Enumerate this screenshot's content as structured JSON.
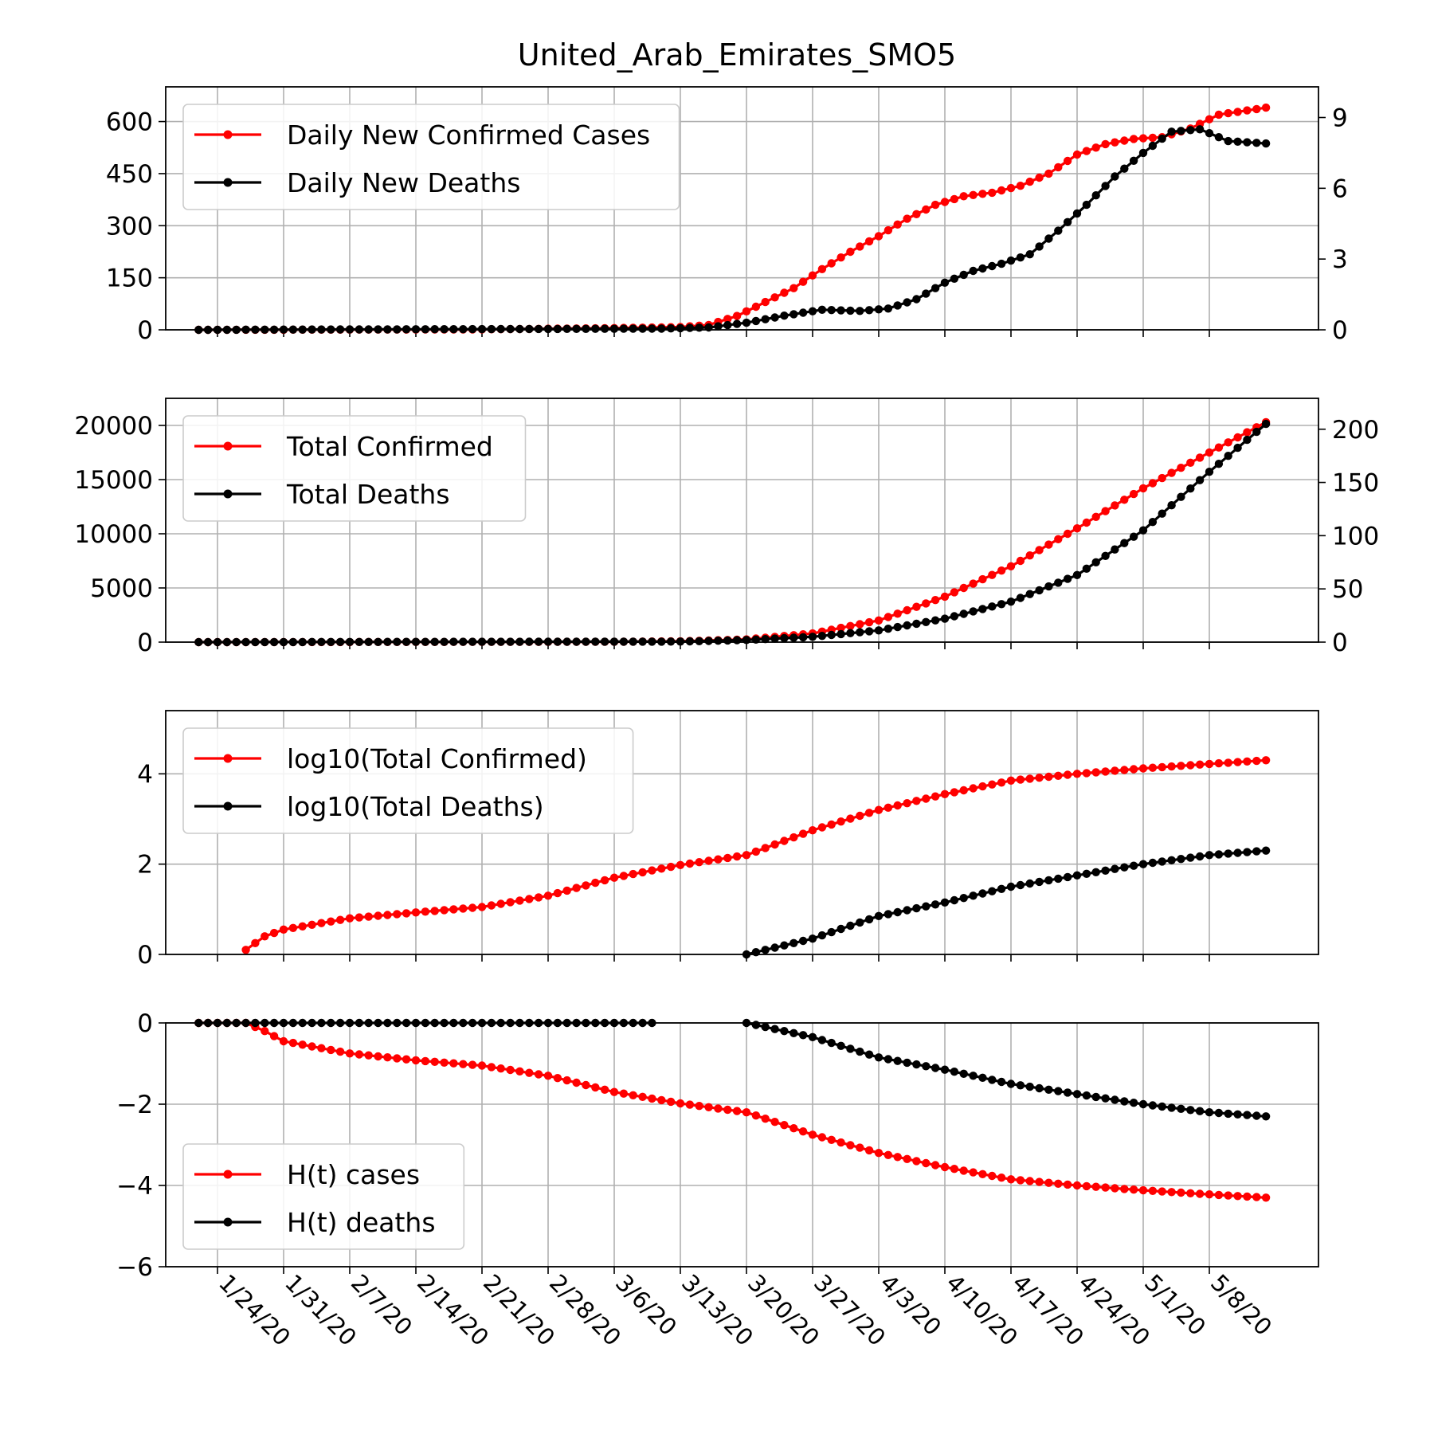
{
  "title": "United_Arab_Emirates_SMO5",
  "colors": {
    "cases": "#ff0000",
    "deaths": "#000000",
    "grid": "#b0b0b0"
  },
  "x_dates": [
    "1/22/20",
    "1/23/20",
    "1/24/20",
    "1/25/20",
    "1/26/20",
    "1/27/20",
    "1/28/20",
    "1/29/20",
    "1/30/20",
    "1/31/20",
    "2/1/20",
    "2/2/20",
    "2/3/20",
    "2/4/20",
    "2/5/20",
    "2/6/20",
    "2/7/20",
    "2/8/20",
    "2/9/20",
    "2/10/20",
    "2/11/20",
    "2/12/20",
    "2/13/20",
    "2/14/20",
    "2/15/20",
    "2/16/20",
    "2/17/20",
    "2/18/20",
    "2/19/20",
    "2/20/20",
    "2/21/20",
    "2/22/20",
    "2/23/20",
    "2/24/20",
    "2/25/20",
    "2/26/20",
    "2/27/20",
    "2/28/20",
    "2/29/20",
    "3/1/20",
    "3/2/20",
    "3/3/20",
    "3/4/20",
    "3/5/20",
    "3/6/20",
    "3/7/20",
    "3/8/20",
    "3/9/20",
    "3/10/20",
    "3/11/20",
    "3/12/20",
    "3/13/20",
    "3/14/20",
    "3/15/20",
    "3/16/20",
    "3/17/20",
    "3/18/20",
    "3/19/20",
    "3/20/20",
    "3/21/20",
    "3/22/20",
    "3/23/20",
    "3/24/20",
    "3/25/20",
    "3/26/20",
    "3/27/20",
    "3/28/20",
    "3/29/20",
    "3/30/20",
    "3/31/20",
    "4/1/20",
    "4/2/20",
    "4/3/20",
    "4/4/20",
    "4/5/20",
    "4/6/20",
    "4/7/20",
    "4/8/20",
    "4/9/20",
    "4/10/20",
    "4/11/20",
    "4/12/20",
    "4/13/20",
    "4/14/20",
    "4/15/20",
    "4/16/20",
    "4/17/20",
    "4/18/20",
    "4/19/20",
    "4/20/20",
    "4/21/20",
    "4/22/20",
    "4/23/20",
    "4/24/20",
    "4/25/20",
    "4/26/20",
    "4/27/20",
    "4/28/20",
    "4/29/20",
    "4/30/20",
    "5/1/20",
    "5/2/20",
    "5/3/20",
    "5/4/20",
    "5/5/20",
    "5/6/20",
    "5/7/20",
    "5/8/20",
    "5/9/20",
    "5/10/20",
    "5/11/20",
    "5/12/20",
    "5/13/20",
    "5/14/20",
    "5/15/20"
  ],
  "x_ticks": [
    "1/24/20",
    "1/31/20",
    "2/7/20",
    "2/14/20",
    "2/21/20",
    "2/28/20",
    "3/6/20",
    "3/13/20",
    "3/20/20",
    "3/27/20",
    "4/3/20",
    "4/10/20",
    "4/17/20",
    "4/24/20",
    "5/1/20",
    "5/8/20"
  ],
  "chart_data": [
    {
      "type": "line",
      "ylim": [
        0,
        700
      ],
      "yticks": [
        "0",
        "150",
        "300",
        "450",
        "600"
      ],
      "y2lim": [
        0,
        10.3
      ],
      "y2ticks": [
        "0",
        "3",
        "6",
        "9"
      ],
      "legend_loc": "upper-left",
      "series": [
        {
          "name": "Daily New Confirmed Cases",
          "axis": "left",
          "color": "#ff0000",
          "start": "1/22/20",
          "end": "5/14/20",
          "keyframes": [
            [
              "1/22/20",
              0
            ],
            [
              "2/20/20",
              1
            ],
            [
              "3/6/20",
              5
            ],
            [
              "3/13/20",
              8
            ],
            [
              "3/16/20",
              14
            ],
            [
              "3/19/20",
              40
            ],
            [
              "3/22/20",
              80
            ],
            [
              "3/25/20",
              120
            ],
            [
              "3/28/20",
              175
            ],
            [
              "3/31/20",
              225
            ],
            [
              "4/3/20",
              270
            ],
            [
              "4/6/20",
              320
            ],
            [
              "4/9/20",
              360
            ],
            [
              "4/12/20",
              385
            ],
            [
              "4/15/20",
              395
            ],
            [
              "4/18/20",
              415
            ],
            [
              "4/21/20",
              450
            ],
            [
              "4/24/20",
              505
            ],
            [
              "4/27/20",
              535
            ],
            [
              "4/30/20",
              550
            ],
            [
              "5/3/20",
              555
            ],
            [
              "5/6/20",
              580
            ],
            [
              "5/9/20",
              620
            ],
            [
              "5/14/20",
              640
            ]
          ]
        },
        {
          "name": "Daily New Deaths",
          "axis": "right",
          "color": "#000000",
          "start": "1/22/20",
          "end": "5/14/20",
          "keyframes": [
            [
              "1/22/20",
              0
            ],
            [
              "3/11/20",
              0.05
            ],
            [
              "3/16/20",
              0.1
            ],
            [
              "3/20/20",
              0.3
            ],
            [
              "3/24/20",
              0.6
            ],
            [
              "3/28/20",
              0.85
            ],
            [
              "4/1/20",
              0.8
            ],
            [
              "4/4/20",
              0.9
            ],
            [
              "4/7/20",
              1.3
            ],
            [
              "4/10/20",
              2.0
            ],
            [
              "4/13/20",
              2.5
            ],
            [
              "4/16/20",
              2.8
            ],
            [
              "4/19/20",
              3.2
            ],
            [
              "4/22/20",
              4.2
            ],
            [
              "4/25/20",
              5.3
            ],
            [
              "4/28/20",
              6.5
            ],
            [
              "5/1/20",
              7.5
            ],
            [
              "5/4/20",
              8.4
            ],
            [
              "5/7/20",
              8.5
            ],
            [
              "5/10/20",
              8.0
            ],
            [
              "5/14/20",
              7.9
            ]
          ]
        }
      ]
    },
    {
      "type": "line",
      "ylim": [
        0,
        22500
      ],
      "yticks": [
        "0",
        "5000",
        "10000",
        "15000",
        "20000"
      ],
      "y2lim": [
        0,
        229
      ],
      "y2ticks": [
        "0",
        "50",
        "100",
        "150",
        "200"
      ],
      "legend_loc": "upper-left",
      "series": [
        {
          "name": "Total Confirmed",
          "axis": "left",
          "color": "#ff0000",
          "start": "1/22/20",
          "end": "5/14/20",
          "keyframes": [
            [
              "1/22/20",
              0
            ],
            [
              "3/6/20",
              30
            ],
            [
              "3/13/20",
              80
            ],
            [
              "3/20/20",
              250
            ],
            [
              "3/27/20",
              800
            ],
            [
              "4/3/20",
              2000
            ],
            [
              "4/10/20",
              4200
            ],
            [
              "4/17/20",
              7000
            ],
            [
              "4/24/20",
              10500
            ],
            [
              "5/1/20",
              14200
            ],
            [
              "5/8/20",
              17500
            ],
            [
              "5/14/20",
              20300
            ]
          ]
        },
        {
          "name": "Total Deaths",
          "axis": "right",
          "color": "#000000",
          "start": "1/22/20",
          "end": "5/14/20",
          "keyframes": [
            [
              "1/22/20",
              0
            ],
            [
              "3/13/20",
              0.5
            ],
            [
              "3/20/20",
              2
            ],
            [
              "3/27/20",
              5
            ],
            [
              "4/3/20",
              11
            ],
            [
              "4/10/20",
              22
            ],
            [
              "4/17/20",
              38
            ],
            [
              "4/24/20",
              63
            ],
            [
              "5/1/20",
              105
            ],
            [
              "5/8/20",
              160
            ],
            [
              "5/14/20",
              205
            ]
          ]
        }
      ]
    },
    {
      "type": "line",
      "ylim": [
        0,
        5.4
      ],
      "yticks": [
        "0",
        "2",
        "4"
      ],
      "legend_loc": "upper-left",
      "series": [
        {
          "name": "log10(Total Confirmed)",
          "axis": "left",
          "color": "#ff0000",
          "start": "1/27/20",
          "end": "5/14/20",
          "keyframes": [
            [
              "1/27/20",
              0.1
            ],
            [
              "1/29/20",
              0.4
            ],
            [
              "1/31/20",
              0.55
            ],
            [
              "2/7/20",
              0.8
            ],
            [
              "2/14/20",
              0.93
            ],
            [
              "2/21/20",
              1.05
            ],
            [
              "2/28/20",
              1.3
            ],
            [
              "3/6/20",
              1.7
            ],
            [
              "3/13/20",
              1.98
            ],
            [
              "3/20/20",
              2.2
            ],
            [
              "3/27/20",
              2.75
            ],
            [
              "4/3/20",
              3.2
            ],
            [
              "4/10/20",
              3.55
            ],
            [
              "4/17/20",
              3.85
            ],
            [
              "4/24/20",
              4.0
            ],
            [
              "5/1/20",
              4.12
            ],
            [
              "5/8/20",
              4.22
            ],
            [
              "5/14/20",
              4.3
            ]
          ]
        },
        {
          "name": "log10(Total Deaths)",
          "axis": "left",
          "color": "#000000",
          "start": "3/20/20",
          "end": "5/14/20",
          "keyframes": [
            [
              "3/20/20",
              0.0
            ],
            [
              "3/24/20",
              0.2
            ],
            [
              "3/27/20",
              0.35
            ],
            [
              "4/3/20",
              0.85
            ],
            [
              "4/10/20",
              1.15
            ],
            [
              "4/17/20",
              1.5
            ],
            [
              "4/24/20",
              1.75
            ],
            [
              "5/1/20",
              2.0
            ],
            [
              "5/8/20",
              2.2
            ],
            [
              "5/14/20",
              2.3
            ]
          ]
        }
      ]
    },
    {
      "type": "line",
      "ylim": [
        -6,
        0
      ],
      "yticks": [
        "0",
        "−2",
        "−4",
        "−6"
      ],
      "legend_loc": "lower-left",
      "series": [
        {
          "name": "H(t) cases",
          "axis": "left",
          "color": "#ff0000",
          "start": "1/22/20",
          "end": "5/14/20",
          "keyframes": [
            [
              "1/22/20",
              0
            ],
            [
              "1/27/20",
              0
            ],
            [
              "1/29/20",
              -0.2
            ],
            [
              "1/31/20",
              -0.45
            ],
            [
              "2/7/20",
              -0.75
            ],
            [
              "2/14/20",
              -0.92
            ],
            [
              "2/21/20",
              -1.05
            ],
            [
              "2/28/20",
              -1.3
            ],
            [
              "3/6/20",
              -1.7
            ],
            [
              "3/13/20",
              -1.98
            ],
            [
              "3/20/20",
              -2.2
            ],
            [
              "3/27/20",
              -2.75
            ],
            [
              "4/3/20",
              -3.2
            ],
            [
              "4/10/20",
              -3.55
            ],
            [
              "4/17/20",
              -3.85
            ],
            [
              "4/24/20",
              -4.0
            ],
            [
              "5/1/20",
              -4.12
            ],
            [
              "5/8/20",
              -4.22
            ],
            [
              "5/14/20",
              -4.3
            ]
          ]
        },
        {
          "name": "H(t) deaths",
          "axis": "left",
          "color": "#000000",
          "segments": [
            {
              "start": "1/22/20",
              "end": "3/10/20",
              "keyframes": [
                [
                  "1/22/20",
                  0
                ],
                [
                  "3/10/20",
                  0
                ]
              ]
            },
            {
              "start": "3/20/20",
              "end": "5/14/20",
              "keyframes": [
                [
                  "3/20/20",
                  0.0
                ],
                [
                  "3/24/20",
                  -0.2
                ],
                [
                  "3/27/20",
                  -0.35
                ],
                [
                  "4/3/20",
                  -0.85
                ],
                [
                  "4/10/20",
                  -1.15
                ],
                [
                  "4/17/20",
                  -1.5
                ],
                [
                  "4/24/20",
                  -1.75
                ],
                [
                  "5/1/20",
                  -2.0
                ],
                [
                  "5/8/20",
                  -2.2
                ],
                [
                  "5/14/20",
                  -2.3
                ]
              ]
            }
          ]
        }
      ]
    }
  ]
}
